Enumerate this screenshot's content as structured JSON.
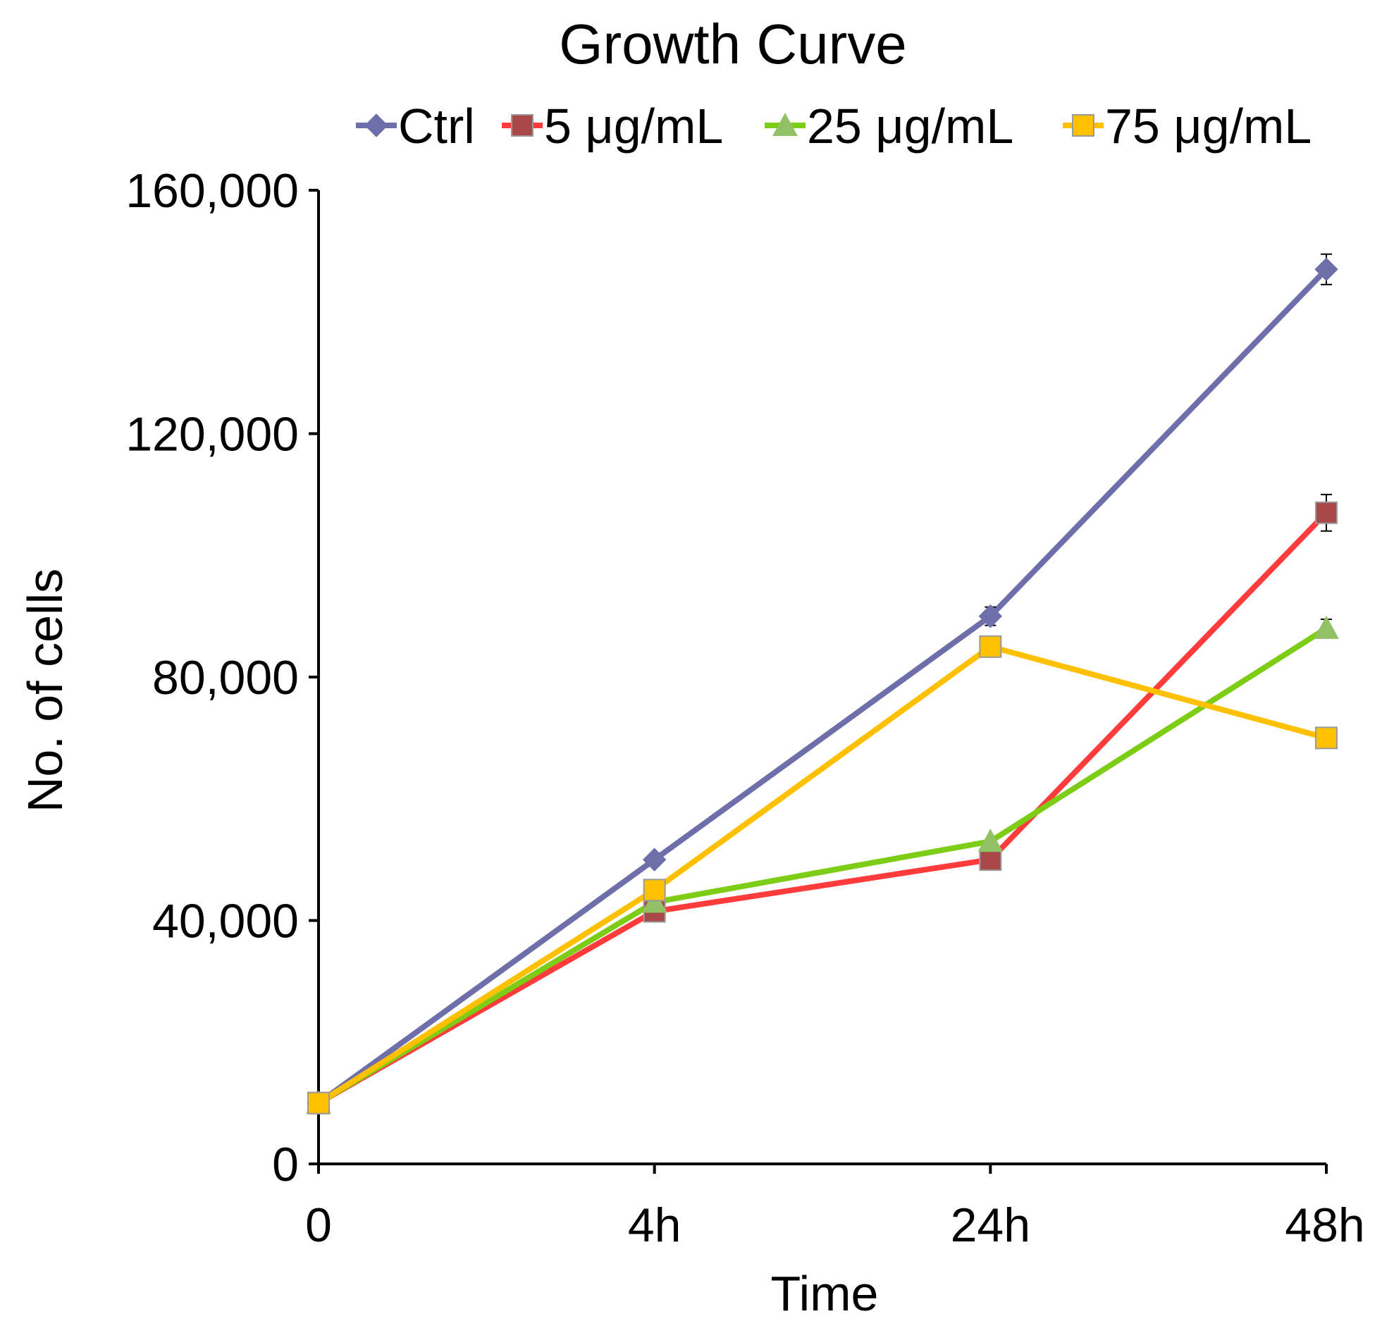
{
  "chart_data": {
    "type": "line",
    "title": "Growth Curve",
    "xlabel": "Time",
    "ylabel": "No. of cells",
    "categories": [
      "0",
      "4h",
      "24h",
      "48h"
    ],
    "ylim": [
      0,
      160000
    ],
    "yticks": [
      0,
      40000,
      80000,
      120000,
      160000
    ],
    "ytick_labels": [
      "0",
      "40,000",
      "80,000",
      "120,000",
      "160,000"
    ],
    "legend_position": "top",
    "series": [
      {
        "name": "Ctrl",
        "color": "#6e6eaa",
        "marker": "diamond",
        "marker_color": "#6e6eaa",
        "values": [
          10000,
          50000,
          90000,
          147000
        ],
        "errors": [
          0,
          0,
          1500,
          2500
        ]
      },
      {
        "name": "5 μg/mL",
        "color": "#ff3b3b",
        "marker": "square",
        "marker_color": "#a84848",
        "values": [
          10000,
          41500,
          50000,
          107000
        ],
        "errors": [
          0,
          0,
          0,
          3000
        ]
      },
      {
        "name": "25 μg/mL",
        "color": "#7dcc16",
        "marker": "triangle",
        "marker_color": "#92c065",
        "values": [
          10000,
          43000,
          53000,
          88000
        ],
        "errors": [
          0,
          0,
          0,
          1500
        ]
      },
      {
        "name": "75 μg/mL",
        "color": "#ffc000",
        "marker": "square",
        "marker_color": "#ffc000",
        "values": [
          10000,
          45000,
          85000,
          70000
        ],
        "errors": [
          0,
          0,
          0,
          0
        ]
      }
    ]
  }
}
